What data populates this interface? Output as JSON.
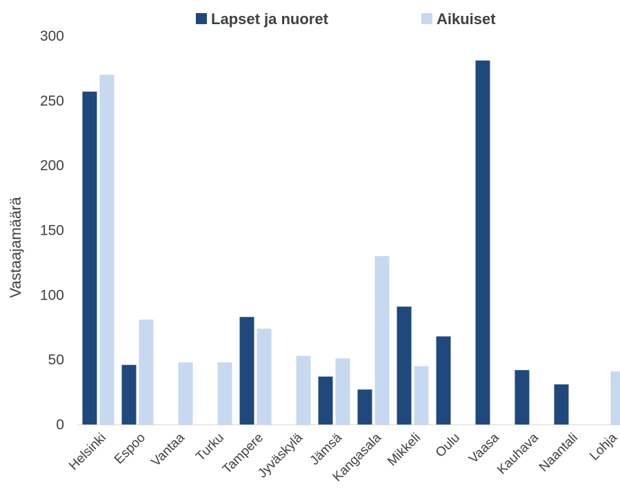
{
  "chart_data": {
    "type": "bar",
    "ylabel": "Vastaajamäärä",
    "xlabel": "",
    "ylim": [
      0,
      300
    ],
    "yticks": [
      0,
      50,
      100,
      150,
      200,
      250,
      300
    ],
    "grid": false,
    "legend_position": "top",
    "categories": [
      "Helsinki",
      "Espoo",
      "Vantaa",
      "Turku",
      "Tampere",
      "Jyväskylä",
      "Jämsä",
      "Kangasala",
      "Mikkeli",
      "Oulu",
      "Vaasa",
      "Kauhava",
      "Naantali",
      "Lohja"
    ],
    "series": [
      {
        "name": "Lapset ja nuoret",
        "color": "#1f497d",
        "values": [
          257,
          46,
          0,
          0,
          83,
          0,
          37,
          27,
          91,
          68,
          281,
          42,
          31,
          0
        ]
      },
      {
        "name": "Aikuiset",
        "color": "#c6d9f1",
        "values": [
          270,
          81,
          48,
          48,
          74,
          53,
          51,
          130,
          45,
          0,
          0,
          0,
          0,
          41
        ]
      }
    ]
  }
}
